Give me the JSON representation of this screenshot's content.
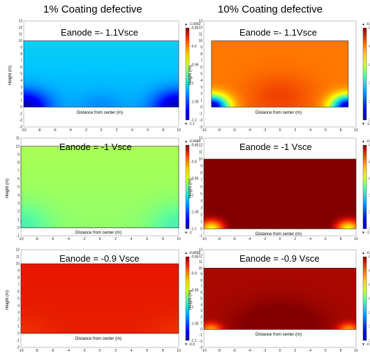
{
  "column_titles": [
    "1% Coating defective",
    "10% Coating defective"
  ],
  "chart_data": [
    {
      "type": "heatmap",
      "panel": "top-left",
      "title": "Eanode =- 1.1Vsce",
      "xlabel": "Distance from center (m)",
      "ylabel": "Height (m)",
      "xlim": [
        -10,
        10
      ],
      "ylim": [
        -3,
        13
      ],
      "xticks": [
        -10,
        -8,
        -6,
        -4,
        -2,
        0,
        2,
        4,
        6,
        8,
        10
      ],
      "yticks": [
        -3,
        -2,
        -1,
        0,
        1,
        2,
        3,
        4,
        5,
        6,
        7,
        8,
        9,
        10,
        11,
        12,
        13
      ],
      "domain": {
        "x": [
          -10,
          10
        ],
        "y": [
          0,
          10
        ]
      },
      "colorbar": {
        "range": [
          -1.1,
          -0.85
        ],
        "ticks": [
          -0.85,
          -0.9,
          -0.95,
          -1,
          -1.05,
          -1.1
        ],
        "max_label": "-1.0042",
        "min_label": "-1.1"
      },
      "field": {
        "base": -1.008,
        "hotspots": [
          {
            "x": -10,
            "y": 0,
            "value": -1.1,
            "radius": 3.5
          },
          {
            "x": 10,
            "y": 0,
            "value": -1.1,
            "radius": 3.5
          },
          {
            "x": 0,
            "y": 0,
            "value": -1.03,
            "radius": 3
          }
        ],
        "bottom_delta": -0.012
      }
    },
    {
      "type": "heatmap",
      "panel": "top-right",
      "title": "Eanode =- 1.1Vsce",
      "xlabel": "Distance from center (m)",
      "ylabel": "Height (m)",
      "xlim": [
        -10,
        10
      ],
      "ylim": [
        -3,
        13
      ],
      "xticks": [
        -10,
        -8,
        -6,
        -4,
        -2,
        0,
        2,
        4,
        6,
        8,
        10
      ],
      "yticks": [
        -3,
        -2,
        -1,
        0,
        1,
        2,
        3,
        4,
        5,
        6,
        7,
        8,
        9,
        10,
        11,
        12,
        13
      ],
      "domain": {
        "x": [
          -9,
          9
        ],
        "y": [
          0,
          10
        ]
      },
      "colorbar": {
        "range": [
          -1.1,
          -0.85
        ],
        "ticks": [
          -0.85,
          -0.9,
          -0.95,
          -1,
          -1.05,
          -1.1
        ],
        "max_label": "-0.8772",
        "min_label": "-1.1"
      },
      "field": {
        "base": -0.895,
        "hotspots": [
          {
            "x": -9,
            "y": 0,
            "value": -1.1,
            "radius": 2.6
          },
          {
            "x": 9,
            "y": 0,
            "value": -1.1,
            "radius": 2.6
          },
          {
            "x": 0,
            "y": 1.5,
            "value": -0.88,
            "radius": 5
          }
        ],
        "bottom_delta": 0.0
      }
    },
    {
      "type": "heatmap",
      "panel": "middle-left",
      "title": "Eanode = -1 Vsce",
      "xlabel": "Distance from center (m)",
      "ylabel": "Height (m)",
      "xlim": [
        -10,
        10
      ],
      "ylim": [
        -1,
        11
      ],
      "xticks": [
        -10,
        -8,
        -6,
        -4,
        -2,
        0,
        2,
        4,
        6,
        8,
        10
      ],
      "yticks": [
        -1,
        0,
        1,
        2,
        3,
        4,
        5,
        6,
        7,
        8,
        9,
        10,
        11
      ],
      "domain": {
        "x": [
          -10,
          10
        ],
        "y": [
          0,
          10
        ]
      },
      "colorbar": {
        "range": [
          -1.1,
          -0.85
        ],
        "ticks": [
          -0.85,
          -0.9,
          -0.95,
          -1,
          -1.05,
          -1.1
        ],
        "max_label": "-0.9484",
        "min_label": "-1"
      },
      "field": {
        "base": -0.958,
        "hotspots": [
          {
            "x": -10,
            "y": 0,
            "value": -0.985,
            "radius": 4
          },
          {
            "x": 10,
            "y": 0,
            "value": -0.985,
            "radius": 4
          }
        ],
        "bottom_delta": -0.006
      }
    },
    {
      "type": "heatmap",
      "panel": "middle-right",
      "title": "Eanode = -1 Vsce",
      "xlabel": "Distance from center (m)",
      "ylabel": "Height (m)",
      "xlim": [
        -10,
        10
      ],
      "ylim": [
        -1,
        13
      ],
      "xticks": [
        -10,
        -8,
        -6,
        -4,
        -2,
        0,
        2,
        4,
        6,
        8,
        10
      ],
      "yticks": [
        -1,
        0,
        1,
        2,
        3,
        4,
        5,
        6,
        7,
        8,
        9,
        10,
        11,
        12,
        13
      ],
      "domain": {
        "x": [
          -10,
          10
        ],
        "y": [
          0,
          10
        ]
      },
      "colorbar": {
        "range": [
          -1.1,
          -0.85
        ],
        "ticks": [
          -0.85,
          -0.9,
          -0.95,
          -1,
          -1.05,
          -1.1
        ],
        "max_label": "-0.8345",
        "min_label": "-1"
      },
      "field": {
        "base": -0.85,
        "hotspots": [
          {
            "x": -9,
            "y": 0,
            "value": -0.94,
            "radius": 1.6
          },
          {
            "x": 9,
            "y": 0,
            "value": -0.94,
            "radius": 1.6
          },
          {
            "x": 0,
            "y": 0,
            "value": -0.835,
            "radius": 5
          }
        ],
        "bottom_delta": 0.0
      }
    },
    {
      "type": "heatmap",
      "panel": "bottom-left",
      "title": "Eanode = -0.9 Vsce",
      "xlabel": "Distance from center (m)",
      "ylabel": "Height (m)",
      "xlim": [
        -10,
        10
      ],
      "ylim": [
        -2,
        12
      ],
      "xticks": [
        -10,
        -8,
        -6,
        -4,
        -2,
        0,
        2,
        4,
        6,
        8,
        10
      ],
      "yticks": [
        -2,
        -1,
        0,
        1,
        2,
        3,
        4,
        5,
        6,
        7,
        8,
        9,
        10,
        11,
        12
      ],
      "domain": {
        "x": [
          -10,
          10
        ],
        "y": [
          0,
          10
        ]
      },
      "colorbar": {
        "range": [
          -1.1,
          -0.85
        ],
        "ticks": [
          -0.85,
          -0.9,
          -0.95,
          -1,
          -1.05,
          -1.1
        ],
        "max_label": "-0.8665",
        "min_label": "-0.9"
      },
      "field": {
        "base": -0.868,
        "hotspots": [
          {
            "x": -10,
            "y": 0,
            "value": -0.875,
            "radius": 4
          },
          {
            "x": 10,
            "y": 0,
            "value": -0.875,
            "radius": 4
          }
        ],
        "bottom_delta": -0.002
      }
    },
    {
      "type": "heatmap",
      "panel": "bottom-right",
      "title": "Eanode = -0.9 Vsce",
      "xlabel": "Distance from center (m)",
      "ylabel": "Height (m)",
      "xlim": [
        -10,
        10
      ],
      "ylim": [
        -3,
        13
      ],
      "xticks": [
        -10,
        -8,
        -6,
        -4,
        -2,
        0,
        2,
        4,
        6,
        8,
        10
      ],
      "yticks": [
        -3,
        -2,
        -1,
        0,
        1,
        2,
        3,
        4,
        5,
        6,
        7,
        8,
        9,
        10,
        11,
        12,
        13
      ],
      "domain": {
        "x": [
          -10,
          10
        ],
        "y": [
          0,
          10
        ]
      },
      "colorbar": {
        "range": [
          -1.1,
          -0.8
        ],
        "ticks": [
          -0.8,
          -0.85,
          -0.9,
          -0.95,
          -1,
          -1.05,
          -1.1
        ],
        "max_label": "-0.7824",
        "min_label": "-0.9"
      },
      "field": {
        "base": -0.808,
        "hotspots": [
          {
            "x": -9,
            "y": 0,
            "value": -0.87,
            "radius": 1.4
          },
          {
            "x": 9,
            "y": 0,
            "value": -0.87,
            "radius": 1.4
          },
          {
            "x": 0,
            "y": 0,
            "value": -0.79,
            "radius": 6
          }
        ],
        "bottom_delta": 0.0
      }
    }
  ]
}
